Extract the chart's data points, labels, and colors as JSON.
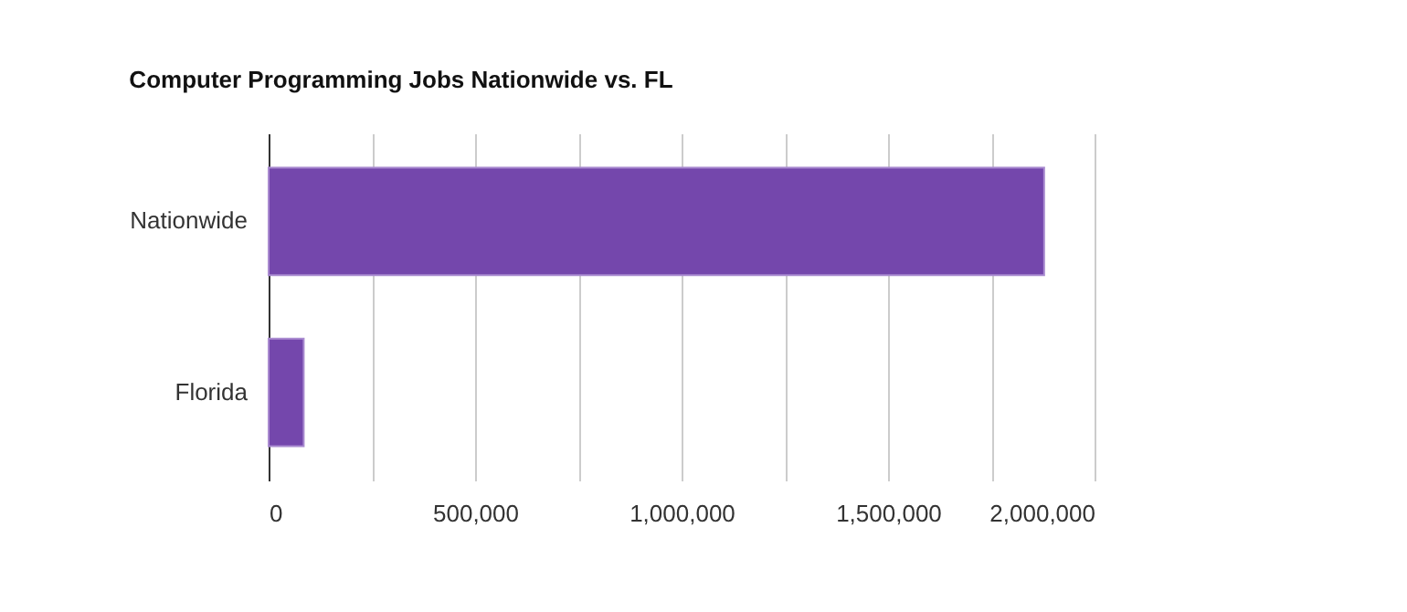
{
  "chart_data": {
    "type": "bar",
    "orientation": "horizontal",
    "title": "Computer Programming Jobs Nationwide vs. FL",
    "categories": [
      "Nationwide",
      "Florida"
    ],
    "values": [
      1878000,
      85000
    ],
    "color": "#7447ac",
    "xlim": [
      0,
      2000000
    ],
    "xticks": [
      0,
      {
        "value": 250000,
        "label": null
      },
      {
        "value": 500000,
        "label": "500,000"
      },
      {
        "value": 750000,
        "label": null
      },
      {
        "value": 1000000,
        "label": "1,000,000"
      },
      {
        "value": 1250000,
        "label": null
      },
      {
        "value": 1500000,
        "label": "1,500,000"
      },
      {
        "value": 1750000,
        "label": null
      },
      {
        "value": 2000000,
        "label": "2,000,000"
      }
    ],
    "grid": "x"
  }
}
